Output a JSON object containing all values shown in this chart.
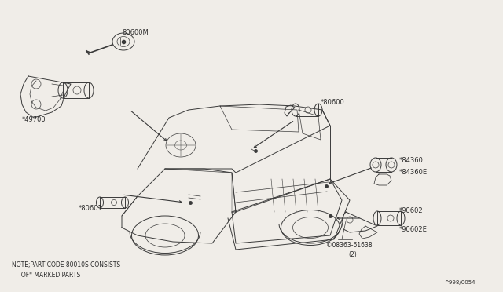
{
  "bg_color": "#f0ede8",
  "line_color": "#3a3a3a",
  "text_color": "#2a2a2a",
  "diagram_id": "^998/0054",
  "note_line1": "NOTE;PART CODE 80010S CONSISTS",
  "note_line2": "     OF* MARKED PARTS",
  "fs_label": 6.0,
  "fs_note": 5.5,
  "fs_id": 5.0,
  "lw_main": 0.7,
  "lw_thin": 0.5,
  "lw_arrow": 0.7
}
